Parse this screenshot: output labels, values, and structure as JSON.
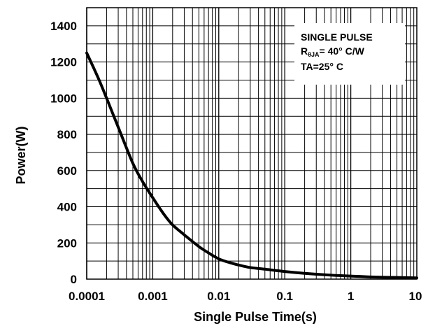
{
  "chart_data": {
    "type": "line",
    "title": "",
    "xlabel": "Single Pulse Time(s)",
    "ylabel": "Power(W)",
    "x_scale": "log",
    "xlim": [
      0.0001,
      10
    ],
    "ylim": [
      0,
      1500
    ],
    "x_ticks": [
      "0.0001",
      "0.001",
      "0.01",
      "0.1",
      "1",
      "10"
    ],
    "y_ticks": [
      "0",
      "200",
      "400",
      "600",
      "800",
      "1000",
      "1200",
      "1400"
    ],
    "grid": true,
    "series": [
      {
        "x": [
          0.0001,
          0.00015,
          0.0002,
          0.0003,
          0.0005,
          0.0007,
          0.001,
          0.0015,
          0.002,
          0.003,
          0.005,
          0.007,
          0.01,
          0.015,
          0.02,
          0.03,
          0.05,
          0.1,
          0.2,
          0.5,
          1,
          2,
          5,
          10
        ],
        "y": [
          1250,
          1110,
          1000,
          840,
          640,
          540,
          450,
          355,
          300,
          245,
          180,
          145,
          112,
          90,
          78,
          64,
          55,
          42,
          32,
          22,
          17,
          12,
          9,
          7
        ]
      }
    ],
    "annotation": {
      "line1": "SINGLE PULSE",
      "line2_main": "R",
      "line2_sub": "θJA",
      "line2_rest": "= 40° C/W",
      "line3": "TA=25° C"
    },
    "colors": {
      "line": "#000000",
      "grid": "#000000",
      "background": "#ffffff"
    }
  }
}
